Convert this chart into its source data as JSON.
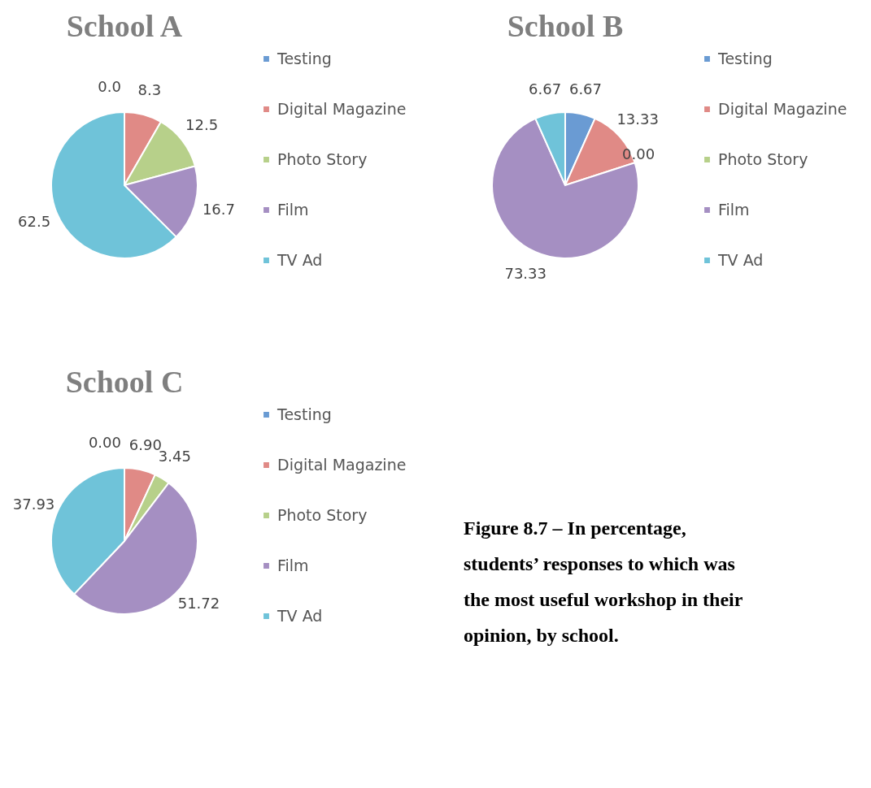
{
  "chart_data": [
    {
      "type": "pie",
      "title": "School A",
      "categories": [
        "Testing",
        "Digital Magazine",
        "Photo Story",
        "Film",
        "TV Ad"
      ],
      "values": [
        0,
        8.3,
        12.5,
        16.7,
        62.5
      ],
      "value_labels": [
        "0.0",
        "8.3",
        "12.5",
        "16.7",
        "62.5"
      ],
      "colors": [
        "#6a9bd3",
        "#e08a86",
        "#b7d08a",
        "#a58fc2",
        "#6fc3d9"
      ],
      "legend": "right"
    },
    {
      "type": "pie",
      "title": "School B",
      "categories": [
        "Testing",
        "Digital Magazine",
        "Photo Story",
        "Film",
        "TV Ad"
      ],
      "values": [
        6.67,
        13.33,
        0,
        73.33,
        6.67
      ],
      "value_labels": [
        "6.67",
        "13.33",
        "0.00",
        "73.33",
        "6.67"
      ],
      "colors": [
        "#6a9bd3",
        "#e08a86",
        "#b7d08a",
        "#a58fc2",
        "#6fc3d9"
      ],
      "legend": "right"
    },
    {
      "type": "pie",
      "title": "School C",
      "categories": [
        "Testing",
        "Digital Magazine",
        "Photo Story",
        "Film",
        "TV Ad"
      ],
      "values": [
        0,
        6.9,
        3.45,
        51.72,
        37.93
      ],
      "value_labels": [
        "0.00",
        "6.90",
        "3.45",
        "51.72",
        "37.93"
      ],
      "colors": [
        "#6a9bd3",
        "#e08a86",
        "#b7d08a",
        "#a58fc2",
        "#6fc3d9"
      ],
      "legend": "right"
    },
    {
      "type": "other",
      "annotations": [
        "Figure 8.7 – In percentage, students’ responses to which was the most useful workshop in their opinion, by school."
      ]
    }
  ]
}
